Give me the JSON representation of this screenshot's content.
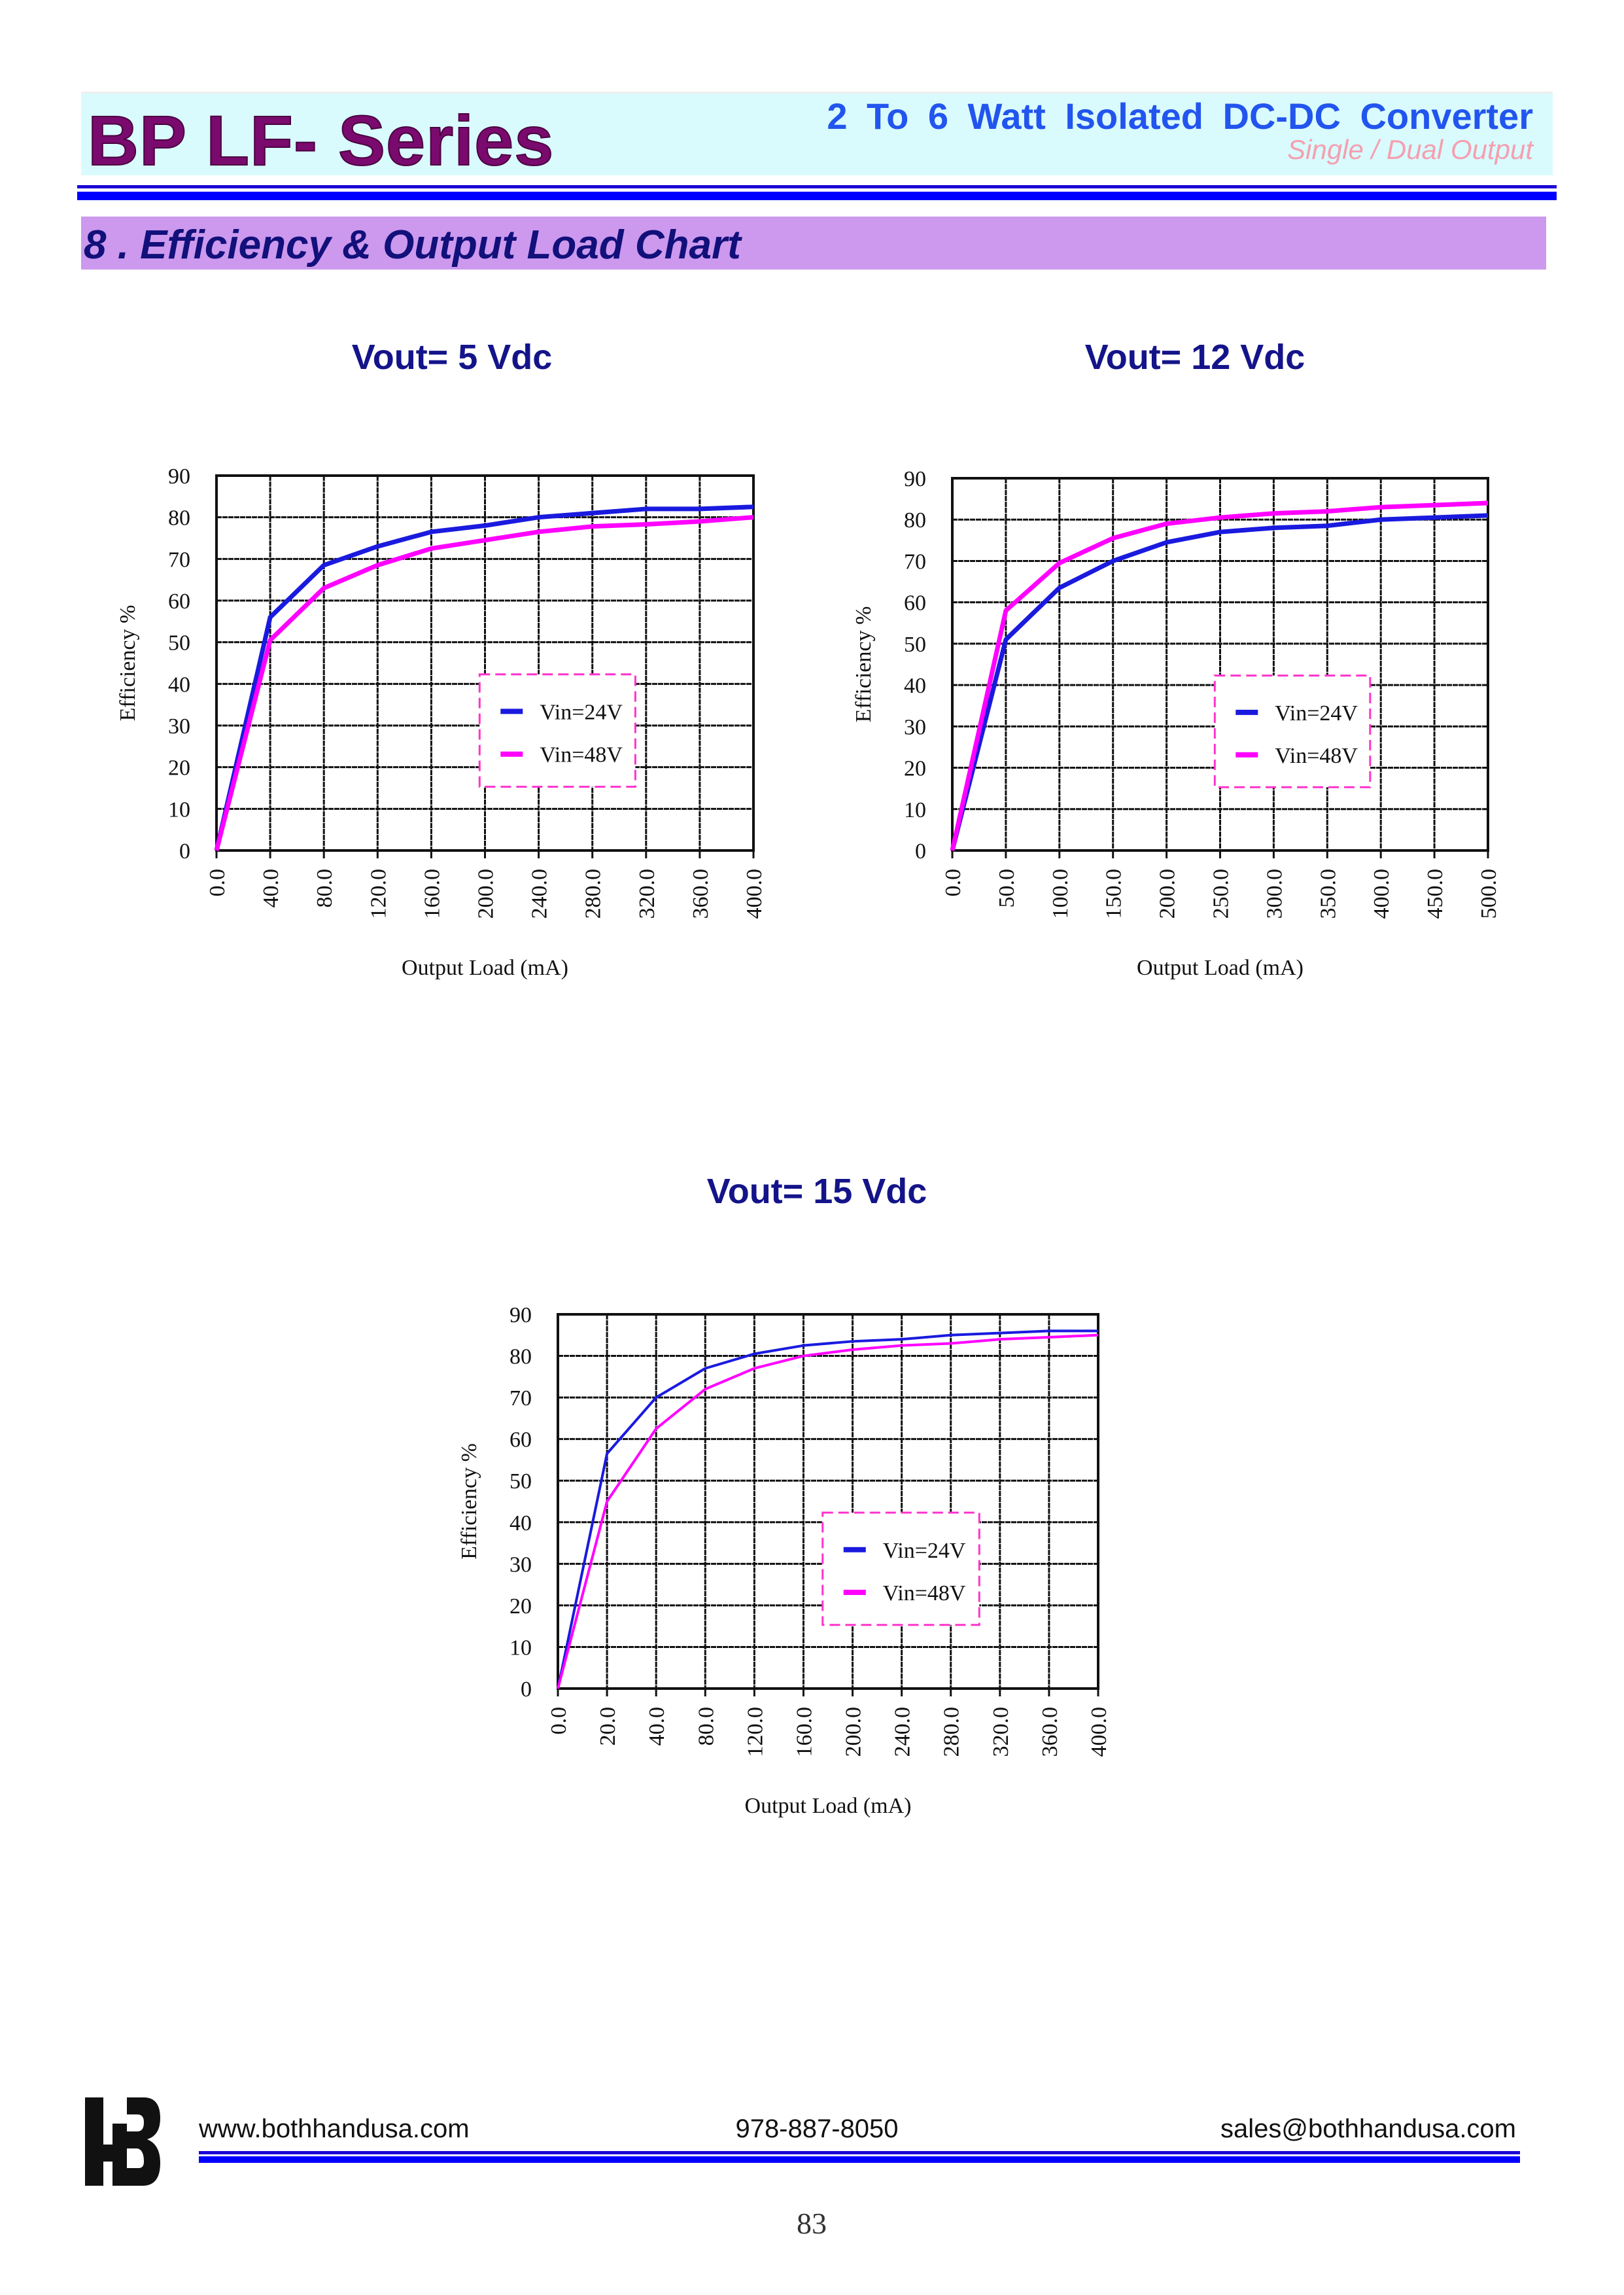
{
  "header": {
    "series": "BP LF- Series",
    "subtitle": "2 To 6 Watt Isolated DC-DC Converter",
    "outputs": "Single / Dual Output"
  },
  "section_title": "8 . Efficiency & Output Load Chart",
  "colors": {
    "vin24": "#1a1adf",
    "vin48": "#ff00ff",
    "legend_border": "#ff33cc"
  },
  "chart_data": [
    {
      "type": "line",
      "title": "Vout= 5 Vdc",
      "xlabel": "Output Load (mA)",
      "ylabel": "Efficiency %",
      "categories": [
        "0.0",
        "40.0",
        "80.0",
        "120.0",
        "160.0",
        "200.0",
        "240.0",
        "280.0",
        "320.0",
        "360.0",
        "400.0"
      ],
      "yticks": [
        "0",
        "10",
        "20",
        "30",
        "40",
        "50",
        "60",
        "70",
        "80",
        "90"
      ],
      "ylim": [
        0,
        90
      ],
      "grid": true,
      "legend": "center-right",
      "series": [
        {
          "name": "Vin=24V",
          "values": [
            0,
            56,
            68.5,
            73,
            76.5,
            78,
            80,
            81,
            82,
            82,
            82.5
          ]
        },
        {
          "name": "Vin=48V",
          "values": [
            0,
            50.5,
            63,
            68.5,
            72.5,
            74.5,
            76.5,
            77.8,
            78.3,
            79,
            80
          ]
        }
      ]
    },
    {
      "type": "line",
      "title": "Vout= 12 Vdc",
      "xlabel": "Output Load (mA)",
      "ylabel": "Efficiency %",
      "categories": [
        "0.0",
        "50.0",
        "100.0",
        "150.0",
        "200.0",
        "250.0",
        "300.0",
        "350.0",
        "400.0",
        "450.0",
        "500.0"
      ],
      "yticks": [
        "0",
        "10",
        "20",
        "30",
        "40",
        "50",
        "60",
        "70",
        "80",
        "90"
      ],
      "ylim": [
        0,
        90
      ],
      "grid": true,
      "legend": "center-right",
      "series": [
        {
          "name": "Vin=24V",
          "values": [
            0,
            51,
            63.5,
            70,
            74.5,
            77,
            78,
            78.5,
            80,
            80.5,
            81
          ]
        },
        {
          "name": "Vin=48V",
          "values": [
            0,
            58,
            69.5,
            75.5,
            79,
            80.5,
            81.5,
            82,
            83,
            83.5,
            84
          ]
        }
      ]
    },
    {
      "type": "line",
      "title": "Vout= 15 Vdc",
      "xlabel": "Output Load (mA)",
      "ylabel": "Efficiency %",
      "categories": [
        "0.0",
        "20.0",
        "40.0",
        "80.0",
        "120.0",
        "160.0",
        "200.0",
        "240.0",
        "280.0",
        "320.0",
        "360.0",
        "400.0"
      ],
      "yticks": [
        "0",
        "10",
        "20",
        "30",
        "40",
        "50",
        "60",
        "70",
        "80",
        "90"
      ],
      "ylim": [
        0,
        90
      ],
      "grid": true,
      "legend": "center-right",
      "series": [
        {
          "name": "Vin=24V",
          "values": [
            0,
            56.5,
            70,
            77,
            80.5,
            82.5,
            83.5,
            84,
            85,
            85.5,
            86,
            86
          ]
        },
        {
          "name": "Vin=48V",
          "values": [
            0,
            45,
            62.5,
            72,
            77,
            80,
            81.5,
            82.5,
            83,
            84,
            84.5,
            85
          ]
        }
      ]
    }
  ],
  "footer": {
    "logo_text": "HB",
    "website": "www.bothhandusa.com",
    "phone": "978-887-8050",
    "email": "sales@bothhandusa.com",
    "page_number": "83"
  }
}
